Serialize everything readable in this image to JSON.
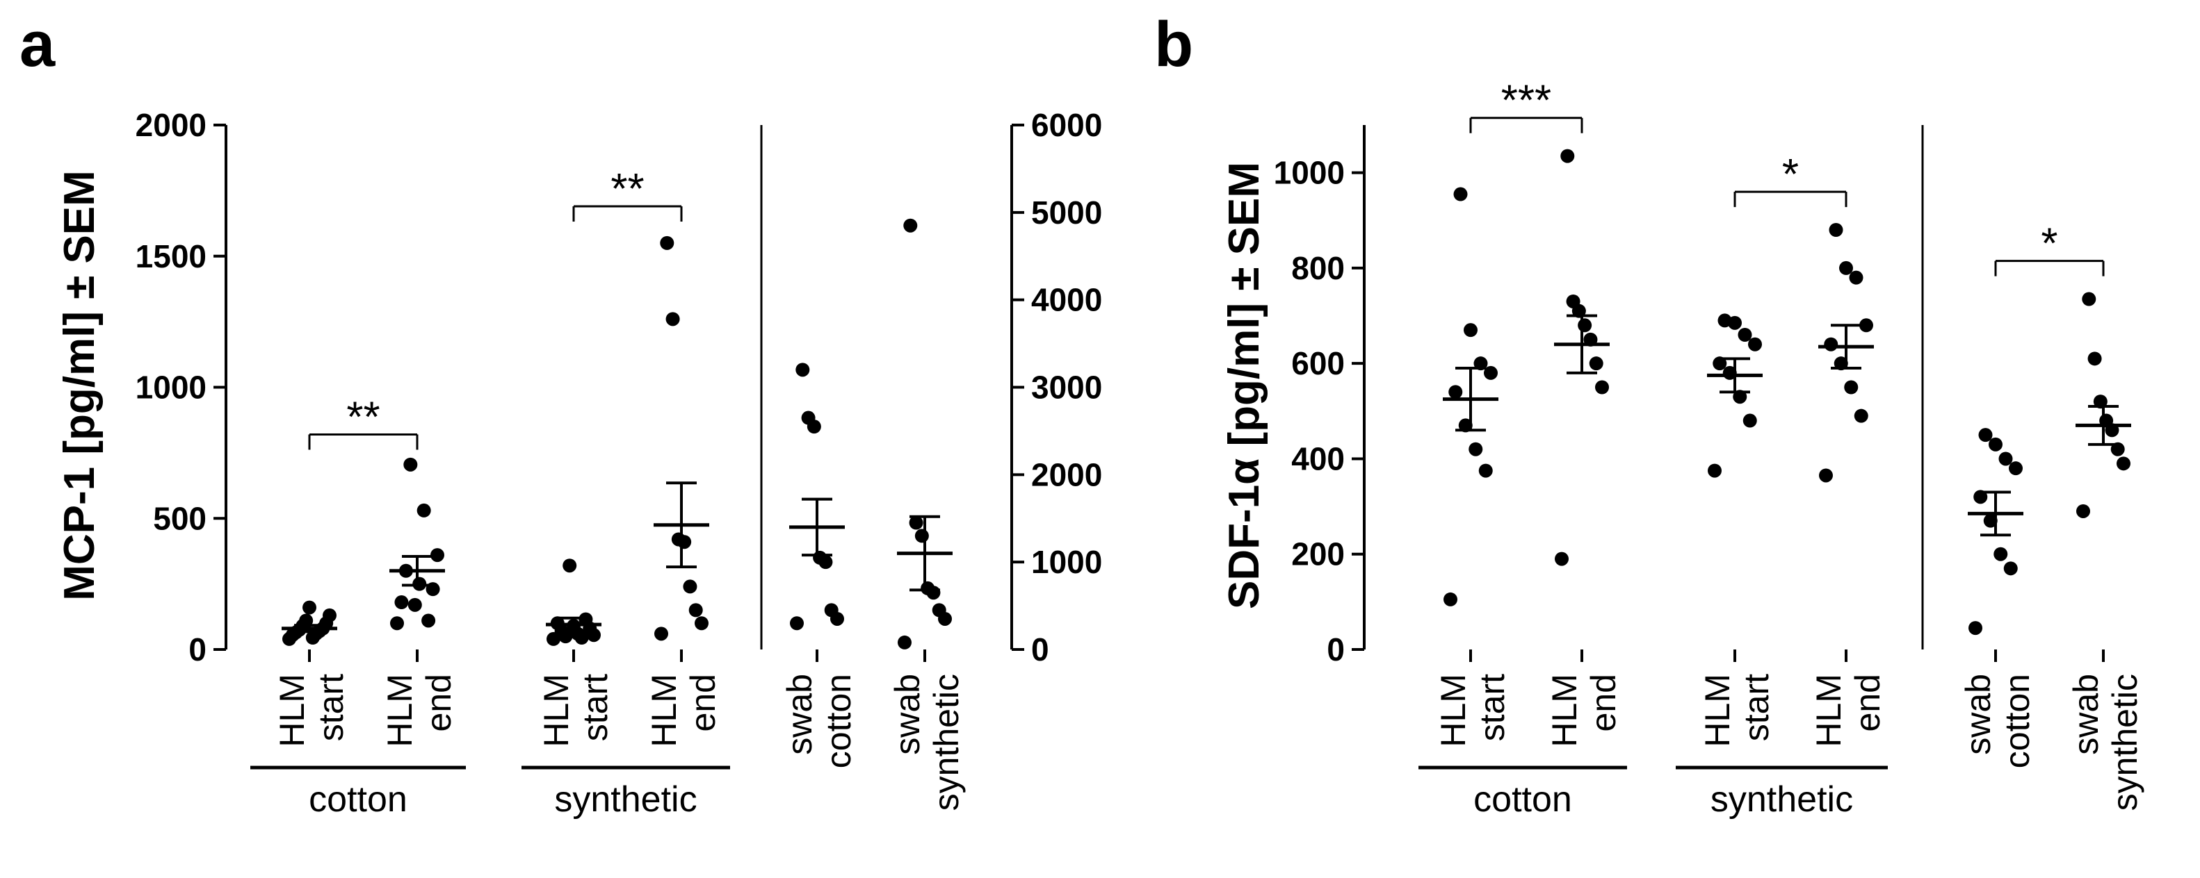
{
  "chart_data": [
    {
      "panel": "a",
      "type": "scatter",
      "ylabel": "MCP-1 [pg/ml] ± SEM",
      "ylim": [
        0,
        2000
      ],
      "yticks": [
        "0",
        "500",
        "1000",
        "1500",
        "2000"
      ],
      "y2lim": [
        0,
        6000
      ],
      "y2ticks": [
        "0",
        "1000",
        "2000",
        "3000",
        "4000",
        "5000",
        "6000"
      ],
      "categories": [
        {
          "line1": "HLM",
          "line2": "start",
          "axis": "left",
          "mean": 80,
          "sem": 12,
          "values": [
            40,
            45,
            55,
            60,
            65,
            70,
            75,
            80,
            90,
            100,
            110,
            130,
            160
          ]
        },
        {
          "line1": "HLM",
          "line2": "end",
          "axis": "left",
          "mean": 300,
          "sem": 55,
          "values": [
            100,
            110,
            170,
            180,
            230,
            250,
            300,
            360,
            530,
            705
          ]
        },
        {
          "line1": "HLM",
          "line2": "start",
          "axis": "left",
          "mean": 95,
          "sem": 25,
          "values": [
            40,
            45,
            50,
            55,
            60,
            70,
            80,
            90,
            100,
            115,
            320
          ]
        },
        {
          "line1": "HLM",
          "line2": "end",
          "axis": "left",
          "mean": 475,
          "sem": 160,
          "values": [
            60,
            100,
            150,
            240,
            410,
            420,
            1260,
            1550
          ]
        },
        {
          "line1": "swab",
          "line2": "cotton",
          "axis": "right",
          "mean": 1400,
          "sem": 320,
          "values": [
            300,
            350,
            450,
            1000,
            1050,
            2550,
            2650,
            3200
          ]
        },
        {
          "line1": "swab",
          "line2": "synthetic",
          "axis": "right",
          "mean": 1100,
          "sem": 420,
          "values": [
            80,
            350,
            450,
            650,
            700,
            1300,
            1450,
            4850
          ]
        }
      ],
      "groups": [
        "cotton",
        "synthetic"
      ],
      "significance": [
        {
          "label": "**",
          "from": 0,
          "to": 1,
          "y": 820
        },
        {
          "label": "**",
          "from": 2,
          "to": 3,
          "y": 1690
        }
      ]
    },
    {
      "panel": "b",
      "type": "scatter",
      "ylabel": "SDF-1α [pg/ml] ± SEM",
      "ylim": [
        0,
        1100
      ],
      "yticks": [
        "0",
        "200",
        "400",
        "600",
        "800",
        "1000"
      ],
      "categories": [
        {
          "line1": "HLM",
          "line2": "start",
          "mean": 525,
          "sem": 65,
          "values": [
            105,
            375,
            420,
            470,
            540,
            580,
            600,
            670,
            955
          ]
        },
        {
          "line1": "HLM",
          "line2": "end",
          "mean": 640,
          "sem": 60,
          "values": [
            190,
            550,
            600,
            650,
            680,
            710,
            730,
            1035
          ]
        },
        {
          "line1": "HLM",
          "line2": "start",
          "mean": 575,
          "sem": 35,
          "values": [
            375,
            480,
            530,
            580,
            600,
            640,
            660,
            685,
            690
          ]
        },
        {
          "line1": "HLM",
          "line2": "end",
          "mean": 635,
          "sem": 45,
          "values": [
            365,
            490,
            550,
            600,
            640,
            680,
            780,
            800,
            880
          ]
        },
        {
          "line1": "swab",
          "line2": "cotton",
          "mean": 285,
          "sem": 45,
          "values": [
            45,
            170,
            200,
            270,
            320,
            380,
            400,
            430,
            450
          ]
        },
        {
          "line1": "swab",
          "line2": "synthetic",
          "mean": 470,
          "sem": 40,
          "values": [
            290,
            390,
            420,
            460,
            480,
            520,
            610,
            735
          ]
        }
      ],
      "groups": [
        "cotton",
        "synthetic"
      ],
      "significance": [
        {
          "label": "***",
          "from": 0,
          "to": 1,
          "y": 1115
        },
        {
          "label": "*",
          "from": 2,
          "to": 3,
          "y": 960
        },
        {
          "label": "*",
          "from": 4,
          "to": 5,
          "y": 815
        }
      ]
    }
  ]
}
